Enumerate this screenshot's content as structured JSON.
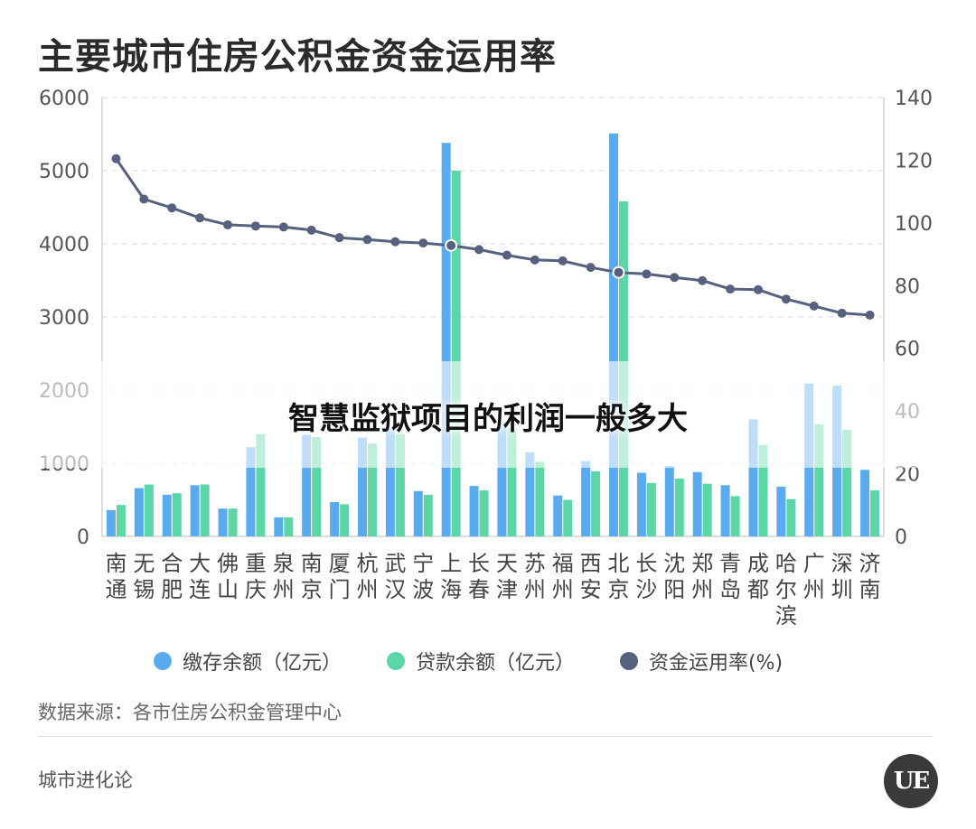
{
  "title": "主要城市住房公积金资金运用率",
  "legend": {
    "deposit": "缴存余额（亿元）",
    "loan": "贷款余额（亿元）",
    "rate": "资金运用率(%)"
  },
  "source": "数据来源：各市住房公积金管理中心",
  "brand": "城市进化论",
  "logo_text": "UE",
  "overlay": "智慧监狱项目的利润一般多大",
  "colors": {
    "deposit": "#5aaaf0",
    "loan": "#5cd6a6",
    "rate": "#56617f",
    "grid": "#dddddd"
  },
  "chart_data": {
    "type": "bar",
    "title": "主要城市住房公积金资金运用率",
    "categories": [
      "南通",
      "无锡",
      "合肥",
      "大连",
      "佛山",
      "重庆",
      "泉州",
      "南京",
      "厦门",
      "杭州",
      "武汉",
      "宁波",
      "上海",
      "长春",
      "天津",
      "苏州",
      "福州",
      "西安",
      "北京",
      "长沙",
      "沈阳",
      "郑州",
      "青岛",
      "成都",
      "哈尔滨",
      "广州",
      "深圳",
      "济南"
    ],
    "series": [
      {
        "name": "缴存余额（亿元）",
        "axis": "left",
        "type": "bar",
        "values": [
          360,
          660,
          570,
          700,
          380,
          1220,
          260,
          1390,
          470,
          1350,
          1480,
          620,
          5380,
          690,
          1570,
          1150,
          560,
          1030,
          5510,
          870,
          960,
          880,
          700,
          1600,
          680,
          2090,
          2060,
          910
        ]
      },
      {
        "name": "贷款余额（亿元）",
        "axis": "left",
        "type": "bar",
        "values": [
          430,
          710,
          590,
          710,
          380,
          1400,
          260,
          1360,
          440,
          1270,
          1400,
          570,
          5000,
          630,
          1480,
          1020,
          500,
          890,
          4580,
          730,
          790,
          720,
          550,
          1250,
          510,
          1530,
          1460,
          630
        ]
      },
      {
        "name": "资金运用率(%)",
        "axis": "right",
        "type": "line",
        "values": [
          120.5,
          107.6,
          104.8,
          101.6,
          99.4,
          99,
          98.7,
          97.7,
          95.3,
          94.7,
          94,
          93.6,
          92.8,
          91.5,
          89.7,
          88.2,
          87.9,
          85.8,
          84.2,
          83.7,
          82.6,
          81.6,
          78.9,
          78.7,
          75.7,
          73.5,
          71.2,
          70.6
        ]
      }
    ],
    "y_left": {
      "min": 0,
      "max": 6000,
      "ticks": [
        0,
        1000,
        2000,
        3000,
        4000,
        5000,
        6000
      ]
    },
    "y_right": {
      "min": 0,
      "max": 140,
      "ticks": [
        0,
        20,
        40,
        60,
        80,
        100,
        120,
        140
      ]
    }
  }
}
